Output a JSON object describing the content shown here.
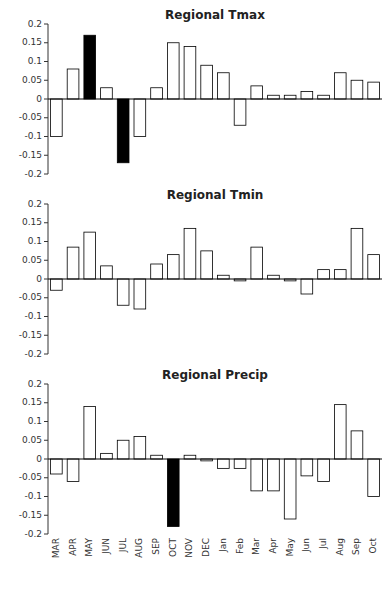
{
  "chart_data": [
    {
      "type": "bar",
      "title": "Regional Tmax",
      "categories": [
        "MAR",
        "APR",
        "MAY",
        "JUN",
        "JUL",
        "AUG",
        "SEP",
        "OCT",
        "NOV",
        "DEC",
        "Jan",
        "Feb",
        "Mar",
        "Apr",
        "May",
        "Jun",
        "Jul",
        "Aug",
        "Sep",
        "Oct"
      ],
      "values": [
        -0.1,
        0.08,
        0.17,
        0.03,
        -0.17,
        -0.1,
        0.03,
        0.15,
        0.14,
        0.09,
        0.07,
        -0.07,
        0.035,
        0.01,
        0.01,
        0.02,
        0.01,
        0.07,
        0.05,
        0.045
      ],
      "colors": [
        "#ffffff",
        "#ffffff",
        "#000000",
        "#ffffff",
        "#000000",
        "#ffffff",
        "#ffffff",
        "#ffffff",
        "#ffffff",
        "#ffffff",
        "#ffffff",
        "#ffffff",
        "#ffffff",
        "#ffffff",
        "#ffffff",
        "#ffffff",
        "#ffffff",
        "#ffffff",
        "#ffffff",
        "#ffffff"
      ],
      "ylim": [
        -0.2,
        0.2
      ],
      "yticks": [
        -0.2,
        -0.15,
        -0.1,
        -0.05,
        0,
        0.05,
        0.1,
        0.15,
        0.2
      ],
      "tick_labels": "y"
    },
    {
      "type": "bar",
      "title": "Regional Tmin",
      "categories": [
        "MAR",
        "APR",
        "MAY",
        "JUN",
        "JUL",
        "AUG",
        "SEP",
        "OCT",
        "NOV",
        "DEC",
        "Jan",
        "Feb",
        "Mar",
        "Apr",
        "May",
        "Jun",
        "Jul",
        "Aug",
        "Sep",
        "Oct"
      ],
      "values": [
        -0.03,
        0.085,
        0.125,
        0.035,
        -0.07,
        -0.08,
        0.04,
        0.065,
        0.135,
        0.075,
        0.01,
        -0.005,
        0.085,
        0.01,
        -0.005,
        -0.04,
        0.025,
        0.025,
        0.135,
        0.065
      ],
      "colors": [
        "#ffffff",
        "#ffffff",
        "#ffffff",
        "#ffffff",
        "#ffffff",
        "#ffffff",
        "#ffffff",
        "#ffffff",
        "#ffffff",
        "#ffffff",
        "#ffffff",
        "#ffffff",
        "#ffffff",
        "#ffffff",
        "#ffffff",
        "#ffffff",
        "#ffffff",
        "#ffffff",
        "#ffffff",
        "#ffffff"
      ],
      "ylim": [
        -0.2,
        0.2
      ],
      "yticks": [
        -0.2,
        -0.15,
        -0.1,
        -0.05,
        0,
        0.05,
        0.1,
        0.15,
        0.2
      ],
      "tick_labels": "y"
    },
    {
      "type": "bar",
      "title": "Regional Precip",
      "categories": [
        "MAR",
        "APR",
        "MAY",
        "JUN",
        "JUL",
        "AUG",
        "SEP",
        "OCT",
        "NOV",
        "DEC",
        "Jan",
        "Feb",
        "Mar",
        "Apr",
        "May",
        "Jun",
        "Jul",
        "Aug",
        "Sep",
        "Oct"
      ],
      "values": [
        -0.04,
        -0.06,
        0.14,
        0.015,
        0.05,
        0.06,
        0.01,
        -0.18,
        0.01,
        -0.005,
        -0.025,
        -0.025,
        -0.085,
        -0.085,
        -0.16,
        -0.045,
        -0.06,
        0.145,
        0.075,
        -0.1
      ],
      "colors": [
        "#ffffff",
        "#ffffff",
        "#ffffff",
        "#ffffff",
        "#ffffff",
        "#ffffff",
        "#ffffff",
        "#000000",
        "#ffffff",
        "#ffffff",
        "#ffffff",
        "#ffffff",
        "#ffffff",
        "#ffffff",
        "#ffffff",
        "#ffffff",
        "#ffffff",
        "#ffffff",
        "#ffffff",
        "#ffffff"
      ],
      "ylim": [
        -0.2,
        0.2
      ],
      "yticks": [
        -0.2,
        -0.15,
        -0.1,
        -0.05,
        0,
        0.05,
        0.1,
        0.15,
        0.2
      ]
    }
  ]
}
